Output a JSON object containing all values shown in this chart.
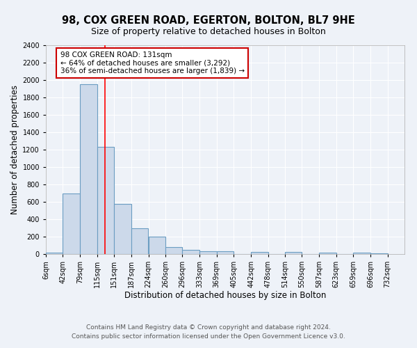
{
  "title": "98, COX GREEN ROAD, EGERTON, BOLTON, BL7 9HE",
  "subtitle": "Size of property relative to detached houses in Bolton",
  "xlabel": "Distribution of detached houses by size in Bolton",
  "ylabel": "Number of detached properties",
  "bar_left_edges": [
    6,
    42,
    79,
    115,
    151,
    187,
    224,
    260,
    296,
    333,
    369,
    405,
    442,
    478,
    514,
    550,
    587,
    623,
    659,
    696
  ],
  "bar_heights": [
    20,
    700,
    1950,
    1230,
    575,
    300,
    200,
    80,
    45,
    30,
    30,
    0,
    25,
    0,
    25,
    0,
    15,
    0,
    15,
    5
  ],
  "bin_width": 36,
  "bar_color": "#ccd9ea",
  "bar_edge_color": "#6b9dc2",
  "bar_edge_width": 0.8,
  "red_line_x": 131,
  "ylim": [
    0,
    2400
  ],
  "yticks": [
    0,
    200,
    400,
    600,
    800,
    1000,
    1200,
    1400,
    1600,
    1800,
    2000,
    2200,
    2400
  ],
  "xtick_labels": [
    "6sqm",
    "42sqm",
    "79sqm",
    "115sqm",
    "151sqm",
    "187sqm",
    "224sqm",
    "260sqm",
    "296sqm",
    "333sqm",
    "369sqm",
    "405sqm",
    "442sqm",
    "478sqm",
    "514sqm",
    "550sqm",
    "587sqm",
    "623sqm",
    "659sqm",
    "696sqm",
    "732sqm"
  ],
  "xtick_positions": [
    6,
    42,
    79,
    115,
    151,
    187,
    224,
    260,
    296,
    333,
    369,
    405,
    442,
    478,
    514,
    550,
    587,
    623,
    659,
    696,
    732
  ],
  "annotation_title": "98 COX GREEN ROAD: 131sqm",
  "annotation_line1": "← 64% of detached houses are smaller (3,292)",
  "annotation_line2": "36% of semi-detached houses are larger (1,839) →",
  "footer_line1": "Contains HM Land Registry data © Crown copyright and database right 2024.",
  "footer_line2": "Contains public sector information licensed under the Open Government Licence v3.0.",
  "bg_color": "#eef2f8",
  "plot_bg_color": "#eef2f8",
  "grid_color": "#ffffff",
  "title_fontsize": 10.5,
  "subtitle_fontsize": 9,
  "axis_label_fontsize": 8.5,
  "tick_fontsize": 7,
  "annotation_fontsize": 7.5,
  "footer_fontsize": 6.5
}
